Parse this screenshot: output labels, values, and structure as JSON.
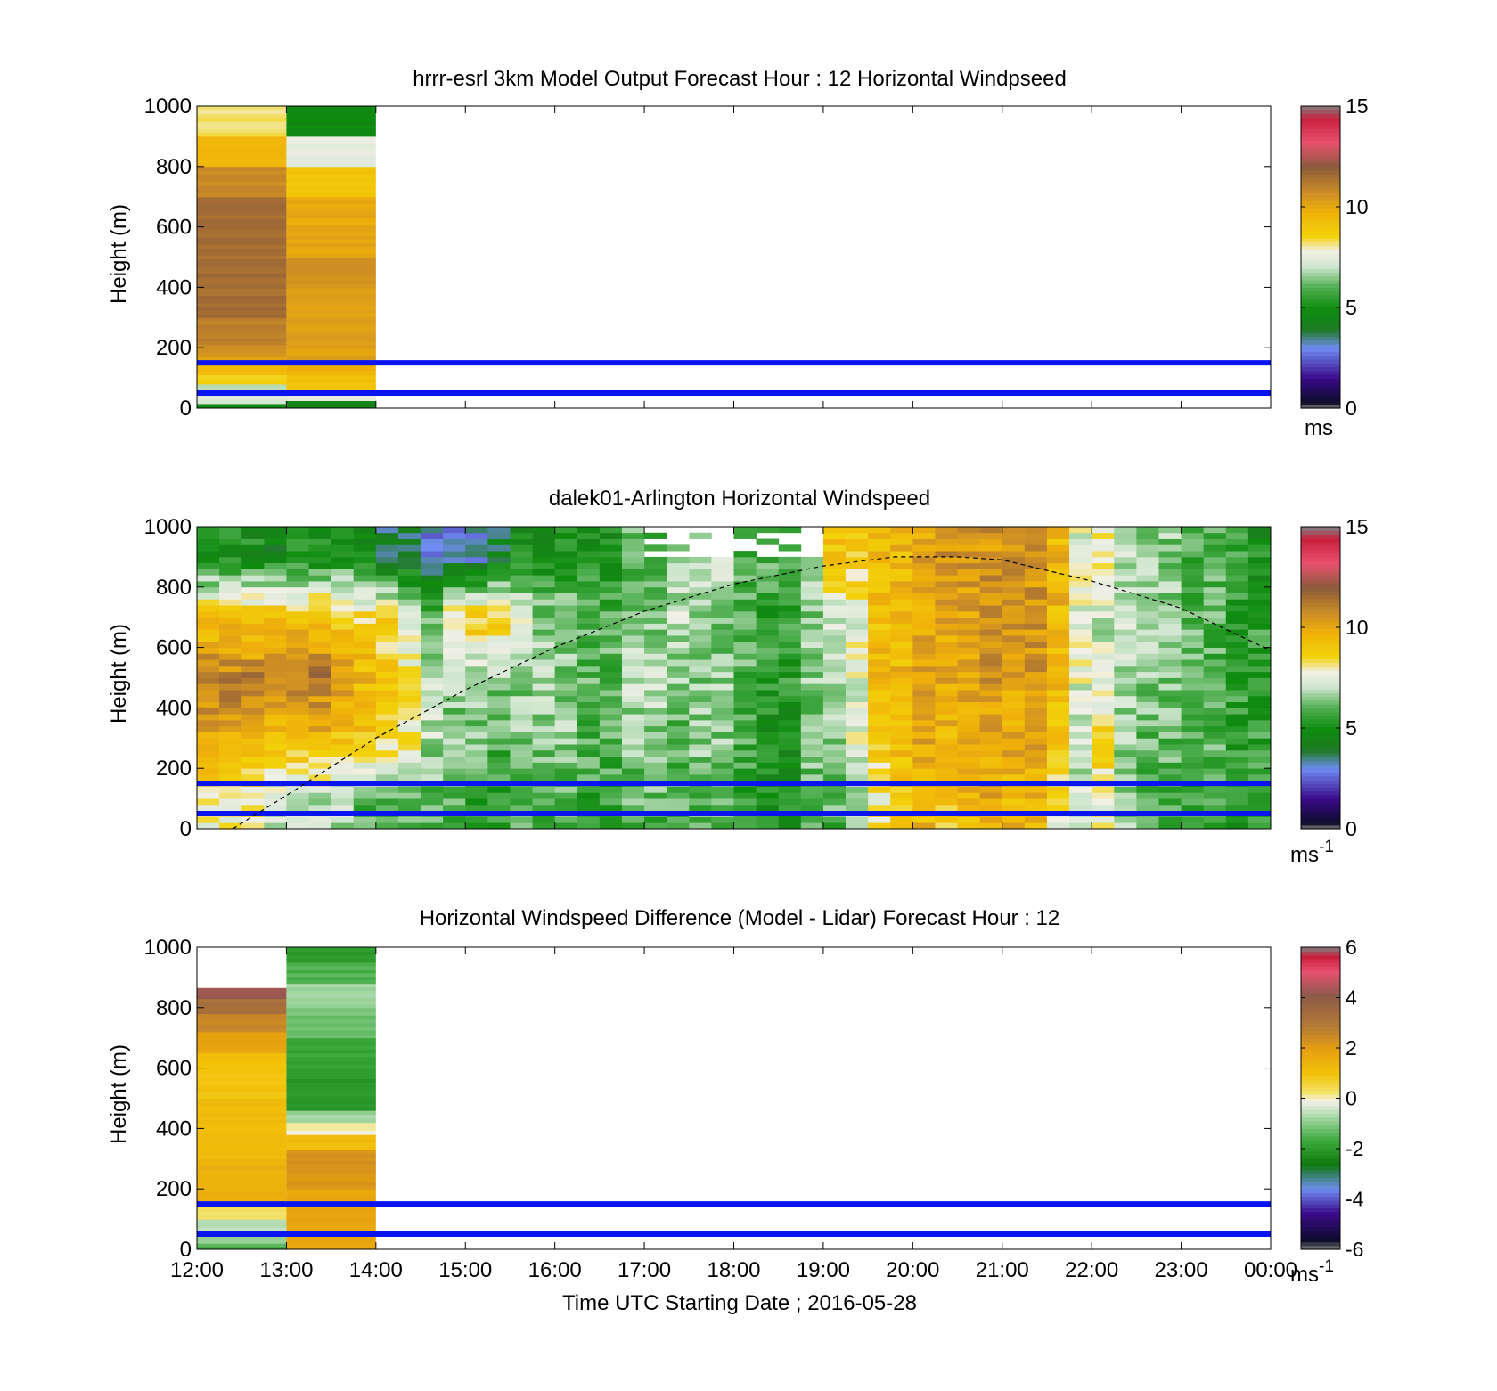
{
  "figure": {
    "xlabel": "Time UTC  Starting Date ; 2016-05-28",
    "x_ticks": [
      "12:00",
      "13:00",
      "14:00",
      "15:00",
      "16:00",
      "17:00",
      "18:00",
      "19:00",
      "20:00",
      "21:00",
      "22:00",
      "23:00",
      "00:00"
    ]
  },
  "chart_data": [
    {
      "type": "heatmap",
      "title": "hrrr-esrl 3km Model Output   Forecast Hour : 12 Horizontal Windpseed",
      "ylabel": "Height (m)",
      "ylim": [
        0,
        1000
      ],
      "y_ticks": [
        "0",
        "200",
        "400",
        "600",
        "800",
        "1000"
      ],
      "colorbar": {
        "ticks": [
          "0",
          "5",
          "10",
          "15"
        ],
        "range": [
          0,
          15
        ],
        "unit": "ms"
      },
      "reference_lines_m": [
        150,
        50
      ],
      "x_hours_utc": [
        12,
        13
      ],
      "columns": [
        {
          "time": "12:00-13:00",
          "segments": [
            {
              "y0": 0,
              "y1": 15,
              "value": 5.0
            },
            {
              "y0": 15,
              "y1": 30,
              "value": 7.0
            },
            {
              "y0": 30,
              "y1": 60,
              "value": 7.5
            },
            {
              "y0": 60,
              "y1": 80,
              "value": 6.8
            },
            {
              "y0": 80,
              "y1": 110,
              "value": 8.5
            },
            {
              "y0": 110,
              "y1": 140,
              "value": 9.5
            },
            {
              "y0": 140,
              "y1": 170,
              "value": 10.0
            },
            {
              "y0": 170,
              "y1": 210,
              "value": 10.6
            },
            {
              "y0": 210,
              "y1": 300,
              "value": 11.0
            },
            {
              "y0": 300,
              "y1": 700,
              "value": 11.5
            },
            {
              "y0": 700,
              "y1": 800,
              "value": 10.8
            },
            {
              "y0": 800,
              "y1": 900,
              "value": 9.5
            },
            {
              "y0": 900,
              "y1": 1000,
              "value": 8.2
            }
          ]
        },
        {
          "time": "13:00-14:00",
          "segments": [
            {
              "y0": 0,
              "y1": 25,
              "value": 4.6
            },
            {
              "y0": 25,
              "y1": 60,
              "value": 7.6
            },
            {
              "y0": 60,
              "y1": 110,
              "value": 9.2
            },
            {
              "y0": 110,
              "y1": 150,
              "value": 9.7
            },
            {
              "y0": 150,
              "y1": 400,
              "value": 10.2
            },
            {
              "y0": 400,
              "y1": 500,
              "value": 10.6
            },
            {
              "y0": 500,
              "y1": 700,
              "value": 10.0
            },
            {
              "y0": 700,
              "y1": 800,
              "value": 9.0
            },
            {
              "y0": 800,
              "y1": 900,
              "value": 7.5
            },
            {
              "y0": 900,
              "y1": 1000,
              "value": 4.8
            }
          ]
        }
      ]
    },
    {
      "type": "heatmap",
      "title": "dalek01-Arlington  Horizontal Windspeed",
      "ylabel": "Height (m)",
      "ylim": [
        0,
        1000
      ],
      "y_ticks": [
        "0",
        "200",
        "400",
        "600",
        "800",
        "1000"
      ],
      "colorbar": {
        "ticks": [
          "0",
          "5",
          "10",
          "15"
        ],
        "range": [
          0,
          15
        ],
        "unit": "ms",
        "unit_exponent": "-1"
      },
      "reference_lines_m": [
        150,
        50
      ],
      "boundary_layer_height_curve": {
        "style": "dashed",
        "x_hours_utc": [
          12.4,
          13.0,
          14.0,
          15.0,
          16.0,
          17.0,
          18.0,
          19.0,
          19.8,
          20.5,
          21.0,
          22.0,
          23.0,
          24.0
        ],
        "height_m": [
          0,
          110,
          300,
          460,
          600,
          720,
          810,
          870,
          900,
          900,
          890,
          820,
          730,
          590
        ]
      },
      "x_hours_utc": [
        12.0,
        12.25,
        12.5,
        12.75,
        13.0,
        13.25,
        13.5,
        13.75,
        14.0,
        14.25,
        14.5,
        14.75,
        15.0,
        15.25,
        15.5,
        15.75,
        16.0,
        16.25,
        16.5,
        16.75,
        17.0,
        17.25,
        17.5,
        17.75,
        18.0,
        18.25,
        18.5,
        18.75,
        19.0,
        19.25,
        19.5,
        19.75,
        20.0,
        20.25,
        20.5,
        20.75,
        21.0,
        21.25,
        21.5,
        21.75,
        22.0,
        22.25,
        22.5,
        22.75,
        23.0,
        23.25,
        23.5,
        23.75
      ],
      "column_profiles_windspeed_ms": {
        "levels_m": [
          100,
          300,
          500,
          700,
          900
        ],
        "values": [
          [
            8,
            10,
            11,
            9,
            5
          ],
          [
            8,
            10,
            11,
            9,
            5
          ],
          [
            8,
            10,
            11,
            9,
            5
          ],
          [
            7,
            9,
            10.8,
            9.5,
            4.5
          ],
          [
            7,
            9.5,
            11,
            9,
            5
          ],
          [
            7,
            9.5,
            11.2,
            9,
            5
          ],
          [
            7,
            9,
            10.5,
            9,
            5
          ],
          [
            6,
            9,
            9.5,
            8.5,
            5
          ],
          [
            6,
            8.5,
            9,
            8.5,
            4
          ],
          [
            6,
            8,
            8,
            7,
            4
          ],
          [
            6,
            7,
            7,
            6,
            3
          ],
          [
            6,
            6.5,
            6.5,
            8.5,
            3
          ],
          [
            5.5,
            6.5,
            6.5,
            9,
            3
          ],
          [
            5.5,
            6,
            6.5,
            9,
            4
          ],
          [
            6,
            6.5,
            6.5,
            7.5,
            5
          ],
          [
            6,
            6.5,
            7,
            6.5,
            5
          ],
          [
            6,
            6.5,
            6.5,
            6.5,
            5
          ],
          [
            5.5,
            6,
            6,
            6,
            5
          ],
          [
            5.5,
            6,
            6,
            6,
            5
          ],
          [
            6,
            6.5,
            7,
            6.5,
            6
          ],
          [
            6,
            6.5,
            7,
            6.5,
            6
          ],
          [
            6,
            6,
            6.5,
            7,
            7
          ],
          [
            6,
            6.5,
            6.5,
            6.5,
            7
          ],
          [
            6,
            6.5,
            6.5,
            6.5,
            7
          ],
          [
            5.5,
            6,
            6,
            6,
            6
          ],
          [
            5,
            5,
            5.5,
            5.5,
            6
          ],
          [
            5,
            5,
            5.5,
            5.5,
            6
          ],
          [
            6,
            6.5,
            6.5,
            6.5,
            7
          ],
          [
            6,
            6.5,
            7,
            7,
            9
          ],
          [
            7,
            7.5,
            7.5,
            7.5,
            9
          ],
          [
            8,
            9,
            9.5,
            9,
            9.5
          ],
          [
            9,
            9.5,
            9.5,
            9.5,
            9.5
          ],
          [
            9.5,
            10,
            10,
            10,
            10
          ],
          [
            9,
            9.5,
            10,
            10,
            10.5
          ],
          [
            9.5,
            10,
            10,
            10,
            10.5
          ],
          [
            10,
            10,
            10.5,
            10.5,
            10.5
          ],
          [
            9.5,
            10,
            10,
            10.5,
            10.5
          ],
          [
            9.5,
            10,
            10.5,
            10.5,
            10.5
          ],
          [
            8,
            9,
            9.5,
            9.5,
            9.5
          ],
          [
            7,
            7,
            7.5,
            7.5,
            7.5
          ],
          [
            8,
            8.5,
            7.5,
            7,
            8
          ],
          [
            6.5,
            6.5,
            7,
            7,
            7
          ],
          [
            6,
            6,
            6.5,
            6.5,
            6.5
          ],
          [
            6,
            6,
            6.5,
            6.5,
            6.5
          ],
          [
            5.5,
            6,
            6,
            6,
            6
          ],
          [
            5.5,
            6,
            6,
            6,
            6
          ],
          [
            5,
            5.5,
            5.5,
            5.5,
            5.5
          ],
          [
            5.5,
            5.5,
            5.5,
            5.5,
            5
          ]
        ]
      }
    },
    {
      "type": "heatmap",
      "title": "Horizontal Windspeed Difference (Model - Lidar) Forecast Hour : 12",
      "ylabel": "Height (m)",
      "ylim": [
        0,
        1000
      ],
      "y_ticks": [
        "0",
        "200",
        "400",
        "600",
        "800",
        "1000"
      ],
      "colorbar": {
        "ticks": [
          "-6",
          "-4",
          "-2",
          "0",
          "2",
          "4",
          "6"
        ],
        "range": [
          -6,
          6
        ],
        "unit": "ms",
        "unit_exponent": "-1"
      },
      "reference_lines_m": [
        150,
        50
      ],
      "x_hours_utc": [
        12,
        13
      ],
      "columns": [
        {
          "time": "12:00-13:00",
          "segments": [
            {
              "y0": 0,
              "y1": 20,
              "value": -1.5
            },
            {
              "y0": 20,
              "y1": 60,
              "value": -1.0
            },
            {
              "y0": 60,
              "y1": 100,
              "value": -0.5
            },
            {
              "y0": 100,
              "y1": 140,
              "value": 0.2
            },
            {
              "y0": 140,
              "y1": 300,
              "value": 1.5
            },
            {
              "y0": 300,
              "y1": 500,
              "value": 1.2
            },
            {
              "y0": 500,
              "y1": 650,
              "value": 1.0
            },
            {
              "y0": 650,
              "y1": 720,
              "value": 1.8
            },
            {
              "y0": 720,
              "y1": 780,
              "value": 2.5
            },
            {
              "y0": 780,
              "y1": 830,
              "value": 3.2
            },
            {
              "y0": 830,
              "y1": 865,
              "value": 4.2
            }
          ]
        },
        {
          "time": "13:00-14:00",
          "segments": [
            {
              "y0": 0,
              "y1": 200,
              "value": 1.8
            },
            {
              "y0": 200,
              "y1": 330,
              "value": 2.2
            },
            {
              "y0": 330,
              "y1": 380,
              "value": 1.2
            },
            {
              "y0": 380,
              "y1": 420,
              "value": 0.0
            },
            {
              "y0": 420,
              "y1": 460,
              "value": -0.8
            },
            {
              "y0": 460,
              "y1": 600,
              "value": -2.0
            },
            {
              "y0": 600,
              "y1": 700,
              "value": -1.8
            },
            {
              "y0": 700,
              "y1": 800,
              "value": -1.2
            },
            {
              "y0": 800,
              "y1": 880,
              "value": -0.8
            },
            {
              "y0": 880,
              "y1": 950,
              "value": -1.5
            },
            {
              "y0": 950,
              "y1": 1000,
              "value": -2.0
            }
          ]
        }
      ]
    }
  ]
}
